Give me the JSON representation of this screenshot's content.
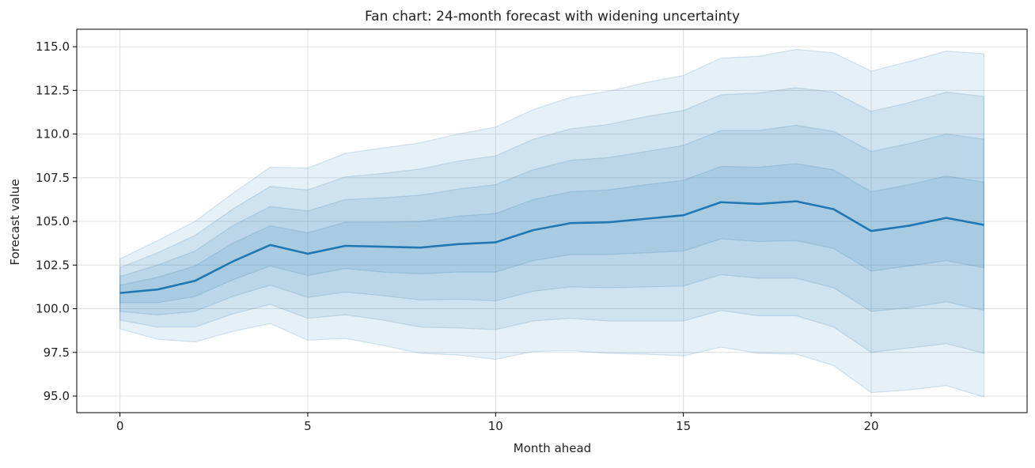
{
  "chart_data": {
    "type": "area",
    "title": "Fan chart: 24-month forecast with widening uncertainty",
    "xlabel": "Month ahead",
    "ylabel": "Forecast value",
    "xlim": [
      -1.15,
      24.15
    ],
    "ylim": [
      94.05,
      116.0
    ],
    "x_ticks": [
      0,
      5,
      10,
      15,
      20
    ],
    "y_ticks": [
      95.0,
      97.5,
      100.0,
      102.5,
      105.0,
      107.5,
      110.0,
      112.5,
      115.0
    ],
    "grid": true,
    "color": "#1f77b4",
    "x": [
      0,
      1,
      2,
      3,
      4,
      5,
      6,
      7,
      8,
      9,
      10,
      11,
      12,
      13,
      14,
      15,
      16,
      17,
      18,
      19,
      20,
      21,
      22,
      23
    ],
    "median": [
      100.9,
      101.1,
      101.6,
      102.7,
      103.65,
      103.15,
      103.6,
      103.55,
      103.5,
      103.7,
      103.8,
      104.5,
      104.9,
      104.95,
      105.15,
      105.35,
      106.1,
      106.0,
      106.15,
      105.7,
      104.45,
      104.75,
      105.2,
      104.8
    ],
    "bands": [
      {
        "level": "outer",
        "upper": [
          102.85,
          103.9,
          105.0,
          106.6,
          108.1,
          108.05,
          108.9,
          109.2,
          109.5,
          110.0,
          110.4,
          111.4,
          112.1,
          112.45,
          112.95,
          113.35,
          114.35,
          114.45,
          114.85,
          114.65,
          113.6,
          114.15,
          114.75,
          114.6
        ],
        "lower": [
          98.85,
          98.25,
          98.1,
          98.7,
          99.15,
          98.2,
          98.3,
          97.9,
          97.45,
          97.35,
          97.1,
          97.55,
          97.6,
          97.45,
          97.4,
          97.3,
          97.8,
          97.45,
          97.4,
          96.75,
          95.2,
          95.35,
          95.6,
          94.95
        ]
      },
      {
        "level": "third",
        "upper": [
          102.35,
          103.2,
          104.2,
          105.7,
          107.0,
          106.8,
          107.55,
          107.75,
          108.0,
          108.45,
          108.75,
          109.7,
          110.3,
          110.55,
          111.0,
          111.35,
          112.25,
          112.35,
          112.65,
          112.4,
          111.3,
          111.8,
          112.4,
          112.15
        ]
      },
      {
        "level": "second",
        "upper": [
          101.85,
          102.5,
          103.3,
          104.75,
          105.85,
          105.6,
          106.25,
          106.35,
          106.5,
          106.85,
          107.1,
          107.95,
          108.5,
          108.65,
          109.0,
          109.35,
          110.2,
          110.2,
          110.5,
          110.15,
          109.0,
          109.45,
          110.0,
          109.7
        ]
      },
      {
        "level": "inner",
        "upper": [
          101.35,
          101.8,
          102.45,
          103.75,
          104.75,
          104.35,
          104.95,
          104.95,
          105.0,
          105.3,
          105.45,
          106.25,
          106.7,
          106.8,
          107.1,
          107.35,
          108.15,
          108.1,
          108.3,
          107.95,
          106.7,
          107.1,
          107.6,
          107.25
        ],
        "lower": [
          100.35,
          100.35,
          100.7,
          101.65,
          102.45,
          101.9,
          102.3,
          102.1,
          102.0,
          102.1,
          102.1,
          102.75,
          103.1,
          103.1,
          103.2,
          103.3,
          104.0,
          103.85,
          103.9,
          103.45,
          102.15,
          102.45,
          102.75,
          102.35
        ]
      },
      {
        "level": "second-lower",
        "lower": [
          99.85,
          99.65,
          99.85,
          100.7,
          101.35,
          100.65,
          100.95,
          100.75,
          100.5,
          100.55,
          100.45,
          101.0,
          101.25,
          101.2,
          101.25,
          101.3,
          101.95,
          101.75,
          101.75,
          101.2,
          99.85,
          100.05,
          100.4,
          99.9
        ]
      },
      {
        "level": "third-lower",
        "lower": [
          99.35,
          98.95,
          98.95,
          99.7,
          100.25,
          99.45,
          99.65,
          99.35,
          98.95,
          98.9,
          98.8,
          99.3,
          99.45,
          99.3,
          99.3,
          99.3,
          99.9,
          99.6,
          99.6,
          98.95,
          97.5,
          97.75,
          98.0,
          97.45
        ]
      }
    ]
  }
}
